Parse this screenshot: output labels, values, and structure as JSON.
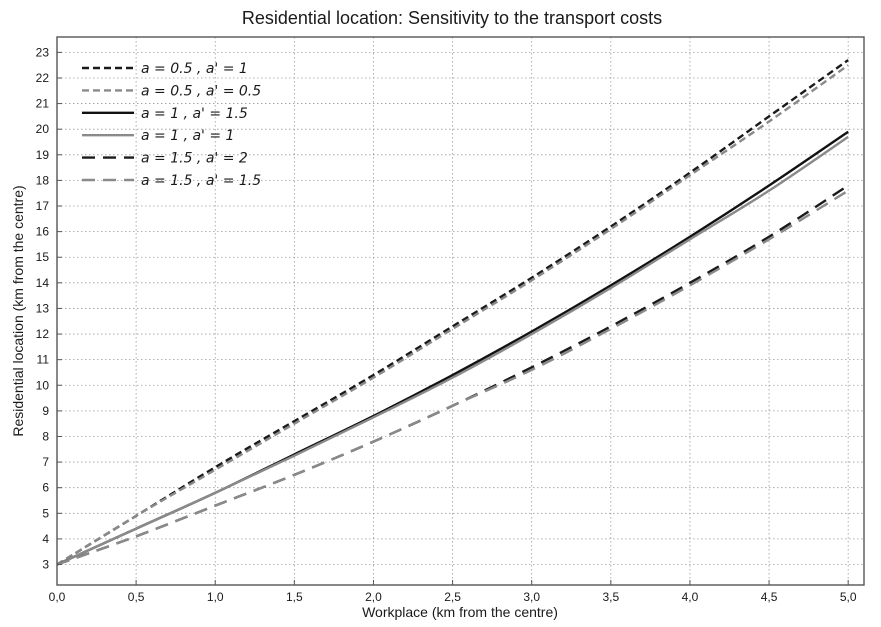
{
  "chart_data": {
    "type": "line",
    "title": "Residential location: Sensitivity to the transport costs",
    "xlabel": "Workplace (km from the centre)",
    "ylabel": "Residential location (km from the centre)",
    "xlim": [
      0,
      5.1
    ],
    "ylim": [
      2.2,
      23.6
    ],
    "x_ticks": [
      "0,0",
      "0,5",
      "1,0",
      "1,5",
      "2,0",
      "2,5",
      "3,0",
      "3,5",
      "4,0",
      "4,5",
      "5,0"
    ],
    "y_ticks": [
      "3",
      "4",
      "5",
      "6",
      "7",
      "8",
      "9",
      "10",
      "11",
      "12",
      "13",
      "14",
      "15",
      "16",
      "17",
      "18",
      "19",
      "20",
      "21",
      "22",
      "23"
    ],
    "grid": true,
    "legend_position": "top-left",
    "x": [
      0,
      0.5,
      1.0,
      1.5,
      2.0,
      2.5,
      3.0,
      3.5,
      4.0,
      4.5,
      5.0
    ],
    "series": [
      {
        "name": "a = 0.5 ,  a' = 1",
        "color": "#1a1a1a",
        "style": "dashed-short",
        "values": [
          3.0,
          4.9,
          6.8,
          8.6,
          10.4,
          12.3,
          14.2,
          16.2,
          18.3,
          20.5,
          22.7
        ]
      },
      {
        "name": "a = 0.5 ,  a' = 0.5",
        "color": "#8a8a8a",
        "style": "dashed-short",
        "values": [
          3.0,
          4.9,
          6.7,
          8.5,
          10.3,
          12.2,
          14.1,
          16.1,
          18.2,
          20.3,
          22.5
        ]
      },
      {
        "name": "a = 1 ,  a' = 1.5",
        "color": "#111111",
        "style": "solid",
        "values": [
          3.0,
          4.4,
          5.8,
          7.3,
          8.8,
          10.4,
          12.1,
          13.9,
          15.8,
          17.8,
          19.9
        ]
      },
      {
        "name": "a = 1 ,  a' = 1",
        "color": "#8a8a8a",
        "style": "solid",
        "values": [
          3.0,
          4.4,
          5.8,
          7.25,
          8.75,
          10.3,
          12.0,
          13.8,
          15.7,
          17.6,
          19.7
        ]
      },
      {
        "name": "a = 1.5 ,  a' = 2",
        "color": "#1a1a1a",
        "style": "dashed-long",
        "values": [
          3.0,
          4.1,
          5.3,
          6.5,
          7.8,
          9.2,
          10.7,
          12.3,
          14.0,
          15.8,
          17.8
        ]
      },
      {
        "name": "a = 1.5 ,  a' = 1.5",
        "color": "#8a8a8a",
        "style": "dashed-long",
        "values": [
          3.0,
          4.1,
          5.3,
          6.5,
          7.8,
          9.2,
          10.6,
          12.2,
          13.9,
          15.7,
          17.6
        ]
      }
    ]
  }
}
